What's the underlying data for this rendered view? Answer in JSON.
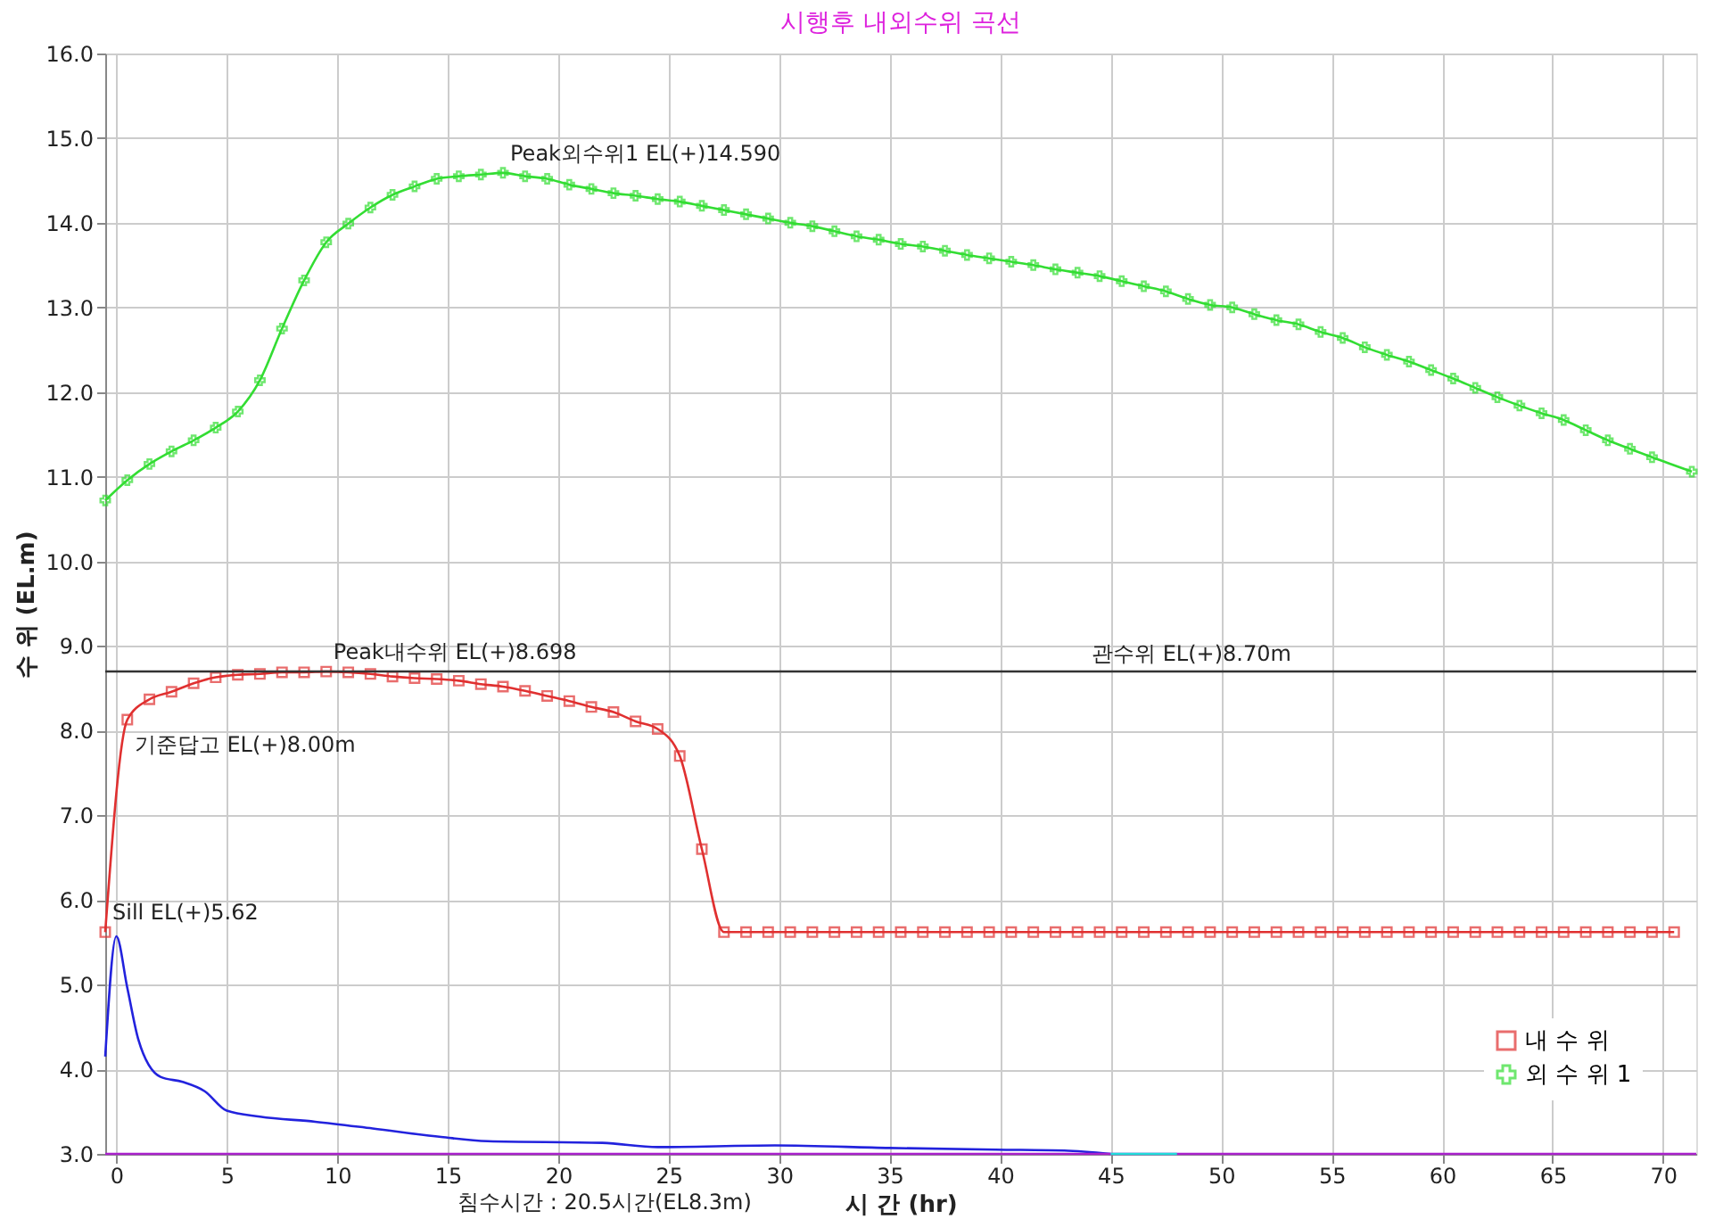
{
  "chart_data": {
    "type": "line",
    "title": "시행후 내외수위 곡선",
    "xlabel": "시   간 (hr)",
    "ylabel": "수 위 (EL.m)",
    "xlim": [
      -0.5,
      71.5
    ],
    "ylim": [
      3,
      16
    ],
    "xticks": [
      0,
      5,
      10,
      15,
      20,
      25,
      30,
      35,
      40,
      45,
      50,
      55,
      60,
      65,
      70
    ],
    "yticks": [
      {
        "value": 3,
        "label": "3.0"
      },
      {
        "value": 4,
        "label": "4.0"
      },
      {
        "value": 5,
        "label": "5.0"
      },
      {
        "value": 6,
        "label": "6.0"
      },
      {
        "value": 7,
        "label": "7.0"
      },
      {
        "value": 8,
        "label": "8.0"
      },
      {
        "value": 9,
        "label": "9.0"
      },
      {
        "value": 10,
        "label": "10.0"
      },
      {
        "value": 11,
        "label": "11.0"
      },
      {
        "value": 12,
        "label": "12.0"
      },
      {
        "value": 13,
        "label": "13.0"
      },
      {
        "value": 14,
        "label": "14.0"
      },
      {
        "value": 15,
        "label": "15.0"
      },
      {
        "value": 16,
        "label": "16.0"
      }
    ],
    "grid": true,
    "legend": "bottom right",
    "line_style": "solid",
    "series": [
      {
        "name": "내 수 위",
        "color": "#e03030",
        "marker": "square",
        "x": [
          -0.5,
          0.5,
          1.5,
          2.5,
          3.5,
          4.5,
          5.5,
          6.5,
          7.5,
          8.5,
          9.5,
          10.5,
          11.5,
          12.5,
          13.5,
          14.5,
          15.5,
          16.5,
          17.5,
          18.5,
          19.5,
          20.5,
          21.5,
          22.5,
          23.5,
          24.5,
          25.5,
          26.5,
          27.5,
          28.5,
          29.5,
          30.5,
          31.5,
          32.5,
          33.5,
          34.5,
          35.5,
          36.5,
          37.5,
          38.5,
          39.5,
          40.5,
          41.5,
          42.5,
          43.5,
          44.5,
          45.5,
          46.5,
          47.5,
          48.5,
          49.5,
          50.5,
          51.5,
          52.5,
          53.5,
          54.5,
          55.5,
          56.5,
          57.5,
          58.5,
          59.5,
          60.5,
          61.5,
          62.5,
          63.5,
          64.5,
          65.5,
          66.5,
          67.5,
          68.5,
          69.5,
          70.5
        ],
        "values": [
          5.62,
          8.13,
          8.37,
          8.46,
          8.56,
          8.63,
          8.66,
          8.67,
          8.69,
          8.69,
          8.698,
          8.69,
          8.67,
          8.64,
          8.62,
          8.61,
          8.59,
          8.55,
          8.52,
          8.47,
          8.41,
          8.35,
          8.28,
          8.22,
          8.11,
          8.02,
          7.7,
          6.6,
          5.62,
          5.62,
          5.62,
          5.62,
          5.62,
          5.62,
          5.62,
          5.62,
          5.62,
          5.62,
          5.62,
          5.62,
          5.62,
          5.62,
          5.62,
          5.62,
          5.62,
          5.62,
          5.62,
          5.62,
          5.62,
          5.62,
          5.62,
          5.62,
          5.62,
          5.62,
          5.62,
          5.62,
          5.62,
          5.62,
          5.62,
          5.62,
          5.62,
          5.62,
          5.62,
          5.62,
          5.62,
          5.62,
          5.62,
          5.62,
          5.62,
          5.62,
          5.62,
          5.62
        ]
      },
      {
        "name": "외 수 위 1",
        "color": "#33dd33",
        "marker": "cross",
        "x": [
          -0.5,
          0.5,
          1.5,
          2.5,
          3.5,
          4.5,
          5.5,
          6.5,
          7.5,
          8.5,
          9.5,
          10.5,
          11.5,
          12.5,
          13.5,
          14.5,
          15.5,
          16.5,
          17.5,
          18.5,
          19.5,
          20.5,
          21.5,
          22.5,
          23.5,
          24.5,
          25.5,
          26.5,
          27.5,
          28.5,
          29.5,
          30.5,
          31.5,
          32.5,
          33.5,
          34.5,
          35.5,
          36.5,
          37.5,
          38.5,
          39.5,
          40.5,
          41.5,
          42.5,
          43.5,
          44.5,
          45.5,
          46.5,
          47.5,
          48.5,
          49.5,
          50.5,
          51.5,
          52.5,
          53.5,
          54.5,
          55.5,
          56.5,
          57.5,
          58.5,
          59.5,
          60.5,
          61.5,
          62.5,
          63.5,
          64.5,
          65.5,
          66.5,
          67.5,
          68.5,
          69.5,
          71.3
        ],
        "values": [
          10.72,
          10.96,
          11.15,
          11.3,
          11.43,
          11.58,
          11.77,
          12.14,
          12.75,
          13.32,
          13.77,
          13.99,
          14.18,
          14.33,
          14.43,
          14.52,
          14.55,
          14.57,
          14.59,
          14.55,
          14.52,
          14.45,
          14.4,
          14.35,
          14.32,
          14.28,
          14.25,
          14.2,
          14.15,
          14.1,
          14.05,
          14.0,
          13.96,
          13.9,
          13.84,
          13.8,
          13.75,
          13.72,
          13.67,
          13.62,
          13.58,
          13.54,
          13.5,
          13.45,
          13.41,
          13.37,
          13.31,
          13.25,
          13.19,
          13.1,
          13.03,
          13.0,
          12.92,
          12.85,
          12.8,
          12.71,
          12.64,
          12.53,
          12.44,
          12.36,
          12.26,
          12.16,
          12.05,
          11.94,
          11.84,
          11.75,
          11.67,
          11.55,
          11.43,
          11.33,
          11.23,
          11.06
        ]
      },
      {
        "color": "#2222dd",
        "marker": "none",
        "x": [
          -0.5,
          0,
          0.5,
          1,
          2,
          3,
          4,
          5,
          6.5,
          9,
          11.6,
          14.7,
          16.8,
          22,
          24.5,
          29.8,
          35,
          39.8,
          42.9,
          45
        ],
        "values": [
          4.15,
          5.57,
          4.96,
          4.35,
          3.91,
          3.85,
          3.74,
          3.51,
          3.44,
          3.38,
          3.3,
          3.2,
          3.15,
          3.13,
          3.08,
          3.1,
          3.07,
          3.05,
          3.04,
          3.0
        ]
      },
      {
        "color": "#aa22cc",
        "marker": "none",
        "x": [
          -0.5,
          71.5
        ],
        "values": [
          3.0,
          3.0
        ]
      },
      {
        "color": "#22dddd",
        "marker": "none",
        "x": [
          45,
          48
        ],
        "values": [
          3.0,
          3.0
        ]
      }
    ],
    "ref_lines": [
      {
        "axis": "y",
        "value": 8.7,
        "label": "관수위 EL(+)8.70m",
        "color": "#333333"
      }
    ],
    "annotations": [
      {
        "text": "Peak외수위1 EL(+)14.590",
        "x": 17.5,
        "y": 14.59
      },
      {
        "text": "Peak내수위 EL(+)8.698",
        "x": 9.5,
        "y": 8.698
      },
      {
        "text": "기준답고 EL(+)8.00m",
        "x": 0.5,
        "y": 8.0
      },
      {
        "text": "Sill EL(+)5.62",
        "x": -0.5,
        "y": 5.62
      },
      "침수시간 : 20.5시간(EL8.3m)"
    ]
  }
}
